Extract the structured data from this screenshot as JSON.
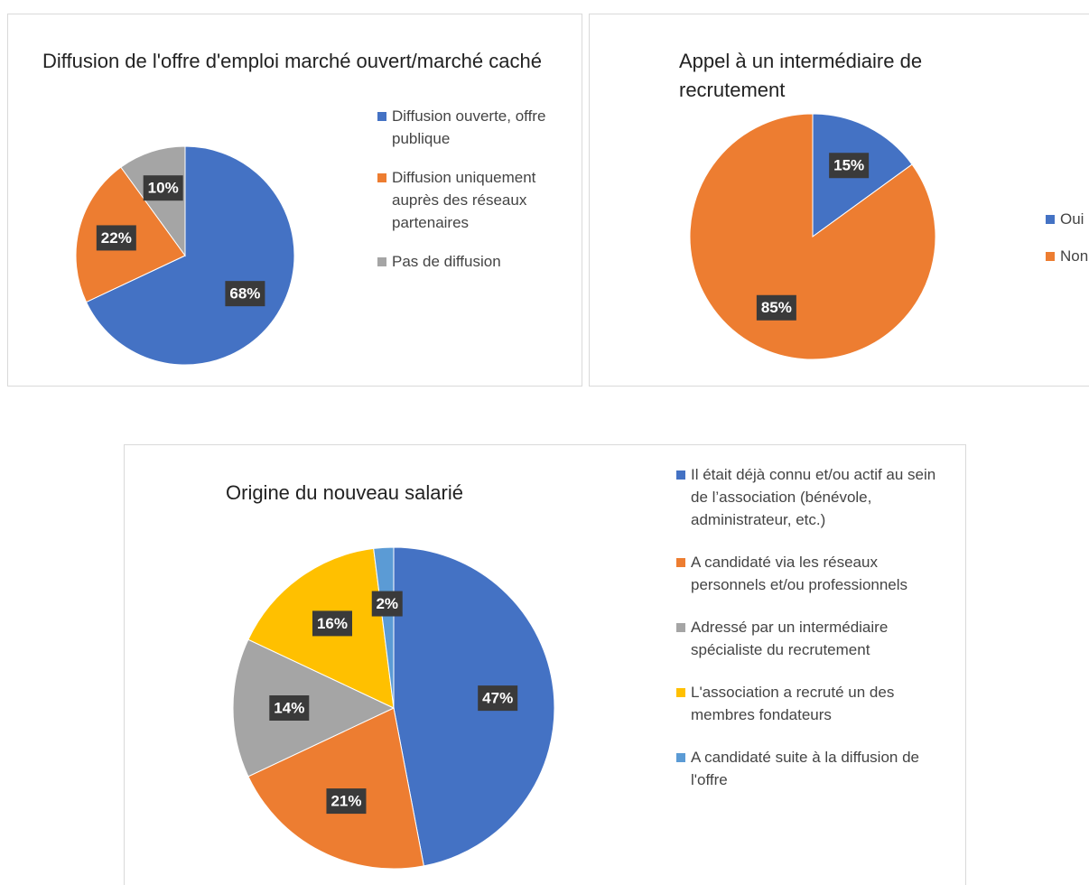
{
  "chart_data": [
    {
      "type": "pie",
      "title": "Diffusion de l'offre d'emploi marché ouvert/marché caché",
      "categories": [
        "Diffusion ouverte, offre publique",
        "Diffusion uniquement auprès des réseaux partenaires",
        "Pas de diffusion"
      ],
      "values": [
        68,
        22,
        10
      ],
      "value_labels": [
        "68%",
        "22%",
        "10%"
      ],
      "colors": [
        "#4472c4",
        "#ed7d31",
        "#a5a5a5"
      ]
    },
    {
      "type": "pie",
      "title": "Appel à un intermédiaire de recrutement",
      "categories": [
        "Oui",
        "Non"
      ],
      "values": [
        15,
        85
      ],
      "value_labels": [
        "15%",
        "85%"
      ],
      "colors": [
        "#4472c4",
        "#ed7d31"
      ]
    },
    {
      "type": "pie",
      "title": "Origine du nouveau salarié",
      "categories": [
        "Il était déjà connu et/ou actif au sein de l’association (bénévole, administrateur, etc.)",
        "A candidaté via les réseaux personnels et/ou professionnels",
        "Adressé par un intermédiaire spécialiste du recrutement",
        "L'association a recruté un des membres fondateurs",
        "A candidaté suite à la diffusion de l'offre"
      ],
      "values": [
        47,
        21,
        14,
        16,
        2
      ],
      "value_labels": [
        "47%",
        "21%",
        "14%",
        "16%",
        "2%"
      ],
      "colors": [
        "#4472c4",
        "#ed7d31",
        "#a5a5a5",
        "#ffc000",
        "#5b9bd5"
      ]
    }
  ]
}
